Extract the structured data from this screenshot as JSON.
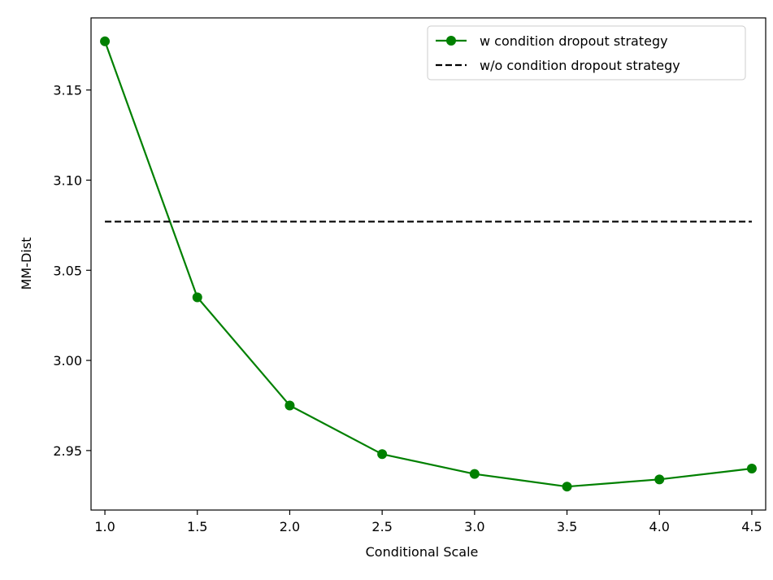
{
  "chart_data": {
    "type": "line",
    "title": "",
    "xlabel": "Conditional Scale",
    "ylabel": "MM-Dist",
    "xlim": [
      0.925,
      4.575
    ],
    "ylim": [
      2.917,
      3.19
    ],
    "xticks": [
      1.0,
      1.5,
      2.0,
      2.5,
      3.0,
      3.5,
      4.0,
      4.5
    ],
    "xtick_labels": [
      "1.0",
      "1.5",
      "2.0",
      "2.5",
      "3.0",
      "3.5",
      "4.0",
      "4.5"
    ],
    "yticks": [
      2.95,
      3.0,
      3.05,
      3.1,
      3.15
    ],
    "ytick_labels": [
      "2.95",
      "3.00",
      "3.05",
      "3.10",
      "3.15"
    ],
    "grid": false,
    "legend_position": "top-right",
    "series": [
      {
        "name": "w condition dropout strategy",
        "style": "solid-marker",
        "color": "#008000",
        "x": [
          1.0,
          1.5,
          2.0,
          2.5,
          3.0,
          3.5,
          4.0,
          4.5
        ],
        "y": [
          3.177,
          3.035,
          2.975,
          2.948,
          2.937,
          2.93,
          2.934,
          2.94
        ]
      },
      {
        "name": "w/o condition dropout strategy",
        "style": "dashed",
        "color": "#000000",
        "x": [
          1.0,
          4.5
        ],
        "y": [
          3.077,
          3.077
        ]
      }
    ]
  }
}
